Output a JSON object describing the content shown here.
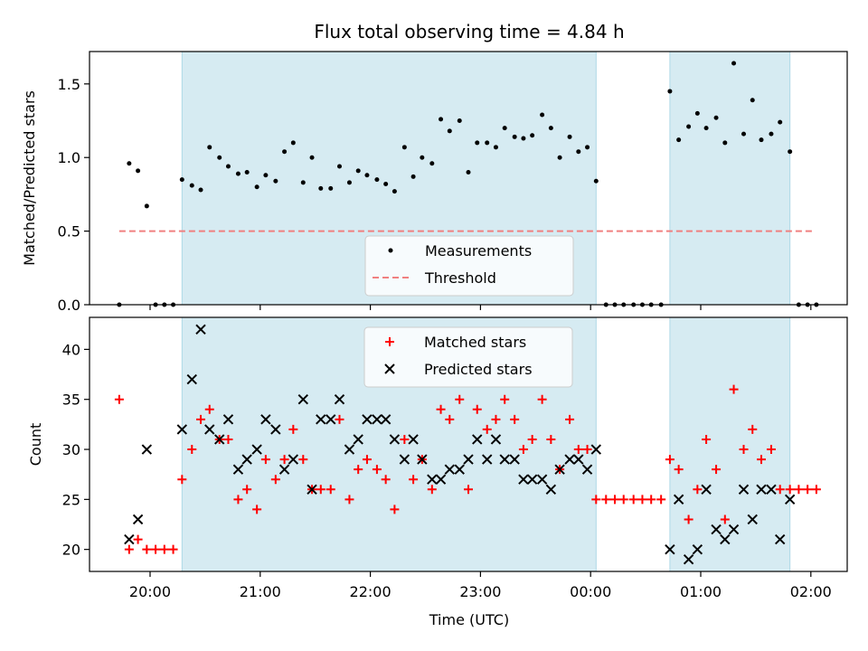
{
  "chart_data": {
    "type": "scatter",
    "title": "Flux total observing time = 4.84 h",
    "x_unit": "Time (UTC)",
    "xlabel": "Time (UTC)",
    "x_start": "19:40",
    "xlim_hours": [
      19.45,
      26.33
    ],
    "xticks": [
      {
        "label": "20:00",
        "hour": 20
      },
      {
        "label": "21:00",
        "hour": 21
      },
      {
        "label": "22:00",
        "hour": 22
      },
      {
        "label": "23:00",
        "hour": 23
      },
      {
        "label": "00:00",
        "hour": 24
      },
      {
        "label": "01:00",
        "hour": 25
      },
      {
        "label": "02:00",
        "hour": 26
      }
    ],
    "observing_windows_hours": [
      [
        20.29,
        24.05
      ],
      [
        24.72,
        25.81
      ]
    ],
    "panels": [
      {
        "name": "ratio",
        "ylabel": "Matched/Predicted stars",
        "ylim": [
          0,
          1.72
        ],
        "yticks": [
          "0.0",
          "0.5",
          "1.0",
          "1.5"
        ],
        "ytick_values": [
          0,
          0.5,
          1.0,
          1.5
        ],
        "threshold": 0.5,
        "threshold_span_hours": [
          19.72,
          26.02
        ],
        "legend": {
          "placement": "lower-center",
          "entries": [
            {
              "label": "Measurements",
              "marker": "dot",
              "color": "#000000"
            },
            {
              "label": "Threshold",
              "marker": "dashed-line",
              "color": "#f08080"
            }
          ]
        },
        "series": [
          {
            "name": "Measurements",
            "color": "#000000",
            "points": [
              [
                19.72,
                0
              ],
              [
                19.81,
                0.96
              ],
              [
                19.89,
                0.91
              ],
              [
                19.97,
                0.67
              ],
              [
                20.05,
                0
              ],
              [
                20.13,
                0
              ],
              [
                20.21,
                0
              ],
              [
                20.29,
                0.85
              ],
              [
                20.38,
                0.81
              ],
              [
                20.46,
                0.78
              ],
              [
                20.54,
                1.07
              ],
              [
                20.63,
                1.0
              ],
              [
                20.71,
                0.94
              ],
              [
                20.8,
                0.89
              ],
              [
                20.88,
                0.9
              ],
              [
                20.97,
                0.8
              ],
              [
                21.05,
                0.88
              ],
              [
                21.14,
                0.84
              ],
              [
                21.22,
                1.04
              ],
              [
                21.3,
                1.1
              ],
              [
                21.39,
                0.83
              ],
              [
                21.47,
                1.0
              ],
              [
                21.55,
                0.79
              ],
              [
                21.64,
                0.79
              ],
              [
                21.72,
                0.94
              ],
              [
                21.81,
                0.83
              ],
              [
                21.89,
                0.91
              ],
              [
                21.97,
                0.88
              ],
              [
                22.06,
                0.85
              ],
              [
                22.14,
                0.82
              ],
              [
                22.22,
                0.77
              ],
              [
                22.31,
                1.07
              ],
              [
                22.39,
                0.87
              ],
              [
                22.47,
                1.0
              ],
              [
                22.56,
                0.96
              ],
              [
                22.64,
                1.26
              ],
              [
                22.72,
                1.18
              ],
              [
                22.81,
                1.25
              ],
              [
                22.89,
                0.9
              ],
              [
                22.97,
                1.1
              ],
              [
                23.06,
                1.1
              ],
              [
                23.14,
                1.07
              ],
              [
                23.22,
                1.2
              ],
              [
                23.31,
                1.14
              ],
              [
                23.39,
                1.13
              ],
              [
                23.47,
                1.15
              ],
              [
                23.56,
                1.29
              ],
              [
                23.64,
                1.2
              ],
              [
                23.72,
                1.0
              ],
              [
                23.81,
                1.14
              ],
              [
                23.89,
                1.04
              ],
              [
                23.97,
                1.07
              ],
              [
                24.05,
                0.84
              ],
              [
                24.14,
                0
              ],
              [
                24.22,
                0
              ],
              [
                24.3,
                0
              ],
              [
                24.39,
                0
              ],
              [
                24.47,
                0
              ],
              [
                24.55,
                0
              ],
              [
                24.64,
                0
              ],
              [
                24.72,
                1.45
              ],
              [
                24.8,
                1.12
              ],
              [
                24.89,
                1.21
              ],
              [
                24.97,
                1.3
              ],
              [
                25.05,
                1.2
              ],
              [
                25.14,
                1.27
              ],
              [
                25.22,
                1.1
              ],
              [
                25.3,
                1.64
              ],
              [
                25.39,
                1.16
              ],
              [
                25.47,
                1.39
              ],
              [
                25.55,
                1.12
              ],
              [
                25.64,
                1.16
              ],
              [
                25.72,
                1.24
              ],
              [
                25.81,
                1.04
              ],
              [
                25.89,
                0
              ],
              [
                25.97,
                0
              ],
              [
                26.05,
                0
              ]
            ]
          }
        ]
      },
      {
        "name": "counts",
        "ylabel": "Count",
        "ylim": [
          17.8,
          43.2
        ],
        "yticks": [
          "20",
          "25",
          "30",
          "35",
          "40"
        ],
        "ytick_values": [
          20,
          25,
          30,
          35,
          40
        ],
        "legend": {
          "placement": "upper-center",
          "entries": [
            {
              "label": "Matched stars",
              "marker": "plus",
              "color": "#ff0000"
            },
            {
              "label": "Predicted stars",
              "marker": "x",
              "color": "#000000"
            }
          ]
        },
        "series": [
          {
            "name": "Matched stars",
            "marker": "plus",
            "color": "#ff0000",
            "points": [
              [
                19.72,
                35
              ],
              [
                19.81,
                20
              ],
              [
                19.89,
                21
              ],
              [
                19.97,
                20
              ],
              [
                20.05,
                20
              ],
              [
                20.13,
                20
              ],
              [
                20.21,
                20
              ],
              [
                20.29,
                27
              ],
              [
                20.38,
                30
              ],
              [
                20.46,
                33
              ],
              [
                20.54,
                34
              ],
              [
                20.63,
                31
              ],
              [
                20.71,
                31
              ],
              [
                20.8,
                25
              ],
              [
                20.88,
                26
              ],
              [
                20.97,
                24
              ],
              [
                21.05,
                29
              ],
              [
                21.14,
                27
              ],
              [
                21.22,
                29
              ],
              [
                21.3,
                32
              ],
              [
                21.39,
                29
              ],
              [
                21.47,
                26
              ],
              [
                21.55,
                26
              ],
              [
                21.64,
                26
              ],
              [
                21.72,
                33
              ],
              [
                21.81,
                25
              ],
              [
                21.89,
                28
              ],
              [
                21.97,
                29
              ],
              [
                22.06,
                28
              ],
              [
                22.14,
                27
              ],
              [
                22.22,
                24
              ],
              [
                22.31,
                31
              ],
              [
                22.39,
                27
              ],
              [
                22.47,
                29
              ],
              [
                22.56,
                26
              ],
              [
                22.64,
                34
              ],
              [
                22.72,
                33
              ],
              [
                22.81,
                35
              ],
              [
                22.89,
                26
              ],
              [
                22.97,
                34
              ],
              [
                23.06,
                32
              ],
              [
                23.14,
                33
              ],
              [
                23.22,
                35
              ],
              [
                23.31,
                33
              ],
              [
                23.39,
                30
              ],
              [
                23.47,
                31
              ],
              [
                23.56,
                35
              ],
              [
                23.64,
                31
              ],
              [
                23.72,
                28
              ],
              [
                23.81,
                33
              ],
              [
                23.89,
                30
              ],
              [
                23.97,
                30
              ],
              [
                24.05,
                25
              ],
              [
                24.14,
                25
              ],
              [
                24.22,
                25
              ],
              [
                24.3,
                25
              ],
              [
                24.39,
                25
              ],
              [
                24.47,
                25
              ],
              [
                24.55,
                25
              ],
              [
                24.64,
                25
              ],
              [
                24.72,
                29
              ],
              [
                24.8,
                28
              ],
              [
                24.89,
                23
              ],
              [
                24.97,
                26
              ],
              [
                25.05,
                31
              ],
              [
                25.14,
                28
              ],
              [
                25.22,
                23
              ],
              [
                25.3,
                36
              ],
              [
                25.39,
                30
              ],
              [
                25.47,
                32
              ],
              [
                25.55,
                29
              ],
              [
                25.64,
                30
              ],
              [
                25.72,
                26
              ],
              [
                25.81,
                26
              ],
              [
                25.89,
                26
              ],
              [
                25.97,
                26
              ],
              [
                26.05,
                26
              ]
            ]
          },
          {
            "name": "Predicted stars",
            "marker": "x",
            "color": "#000000",
            "points": [
              [
                19.81,
                21
              ],
              [
                19.89,
                23
              ],
              [
                19.97,
                30
              ],
              [
                20.29,
                32
              ],
              [
                20.38,
                37
              ],
              [
                20.46,
                42
              ],
              [
                20.54,
                32
              ],
              [
                20.63,
                31
              ],
              [
                20.71,
                33
              ],
              [
                20.8,
                28
              ],
              [
                20.88,
                29
              ],
              [
                20.97,
                30
              ],
              [
                21.05,
                33
              ],
              [
                21.14,
                32
              ],
              [
                21.22,
                28
              ],
              [
                21.3,
                29
              ],
              [
                21.39,
                35
              ],
              [
                21.47,
                26
              ],
              [
                21.55,
                33
              ],
              [
                21.64,
                33
              ],
              [
                21.72,
                35
              ],
              [
                21.81,
                30
              ],
              [
                21.89,
                31
              ],
              [
                21.97,
                33
              ],
              [
                22.06,
                33
              ],
              [
                22.14,
                33
              ],
              [
                22.22,
                31
              ],
              [
                22.31,
                29
              ],
              [
                22.39,
                31
              ],
              [
                22.47,
                29
              ],
              [
                22.56,
                27
              ],
              [
                22.64,
                27
              ],
              [
                22.72,
                28
              ],
              [
                22.81,
                28
              ],
              [
                22.89,
                29
              ],
              [
                22.97,
                31
              ],
              [
                23.06,
                29
              ],
              [
                23.14,
                31
              ],
              [
                23.22,
                29
              ],
              [
                23.31,
                29
              ],
              [
                23.39,
                27
              ],
              [
                23.47,
                27
              ],
              [
                23.56,
                27
              ],
              [
                23.64,
                26
              ],
              [
                23.72,
                28
              ],
              [
                23.81,
                29
              ],
              [
                23.89,
                29
              ],
              [
                23.97,
                28
              ],
              [
                24.05,
                30
              ],
              [
                24.72,
                20
              ],
              [
                24.8,
                25
              ],
              [
                24.89,
                19
              ],
              [
                24.97,
                20
              ],
              [
                25.05,
                26
              ],
              [
                25.14,
                22
              ],
              [
                25.22,
                21
              ],
              [
                25.3,
                22
              ],
              [
                25.39,
                26
              ],
              [
                25.47,
                23
              ],
              [
                25.55,
                26
              ],
              [
                25.64,
                26
              ],
              [
                25.72,
                21
              ],
              [
                25.81,
                25
              ]
            ]
          }
        ]
      }
    ]
  }
}
